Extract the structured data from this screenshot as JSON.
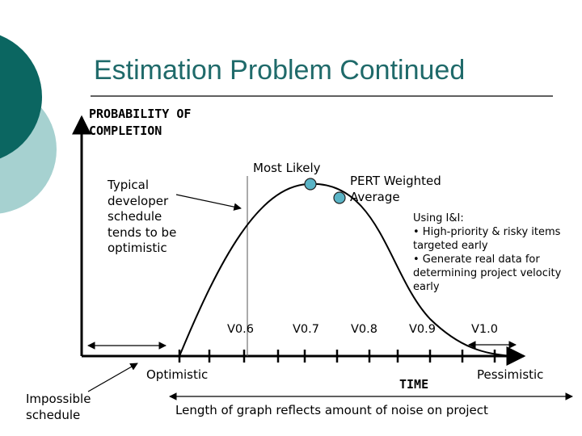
{
  "title": "Estimation Problem Continued",
  "colors": {
    "title": "#1f6a6a",
    "accent_dark": "#0b6661",
    "accent_light": "#a6d1d0",
    "point_fill": "#5ab4c6"
  },
  "y_axis_label": "PROBABILITY OF\nCOMPLETION",
  "x_axis_label": "TIME",
  "annotations": {
    "most_likely": "Most Likely",
    "pert_weighted": "PERT Weighted\nAverage",
    "typical": "Typical\ndeveloper\nschedule\ntends to be\noptimistic",
    "using_ii": "Using I&I:\n• High-priority & risky items\ntargeted early\n• Generate real data for\ndetermining project velocity\nearly",
    "optimistic": "Optimistic",
    "pessimistic": "Pessimistic",
    "impossible": "Impossible\nschedule",
    "length_note": "Length of graph reflects amount of noise on project"
  },
  "versions": [
    "V0.6",
    "V0.7",
    "V0.8",
    "V0.9",
    "V1.0"
  ]
}
